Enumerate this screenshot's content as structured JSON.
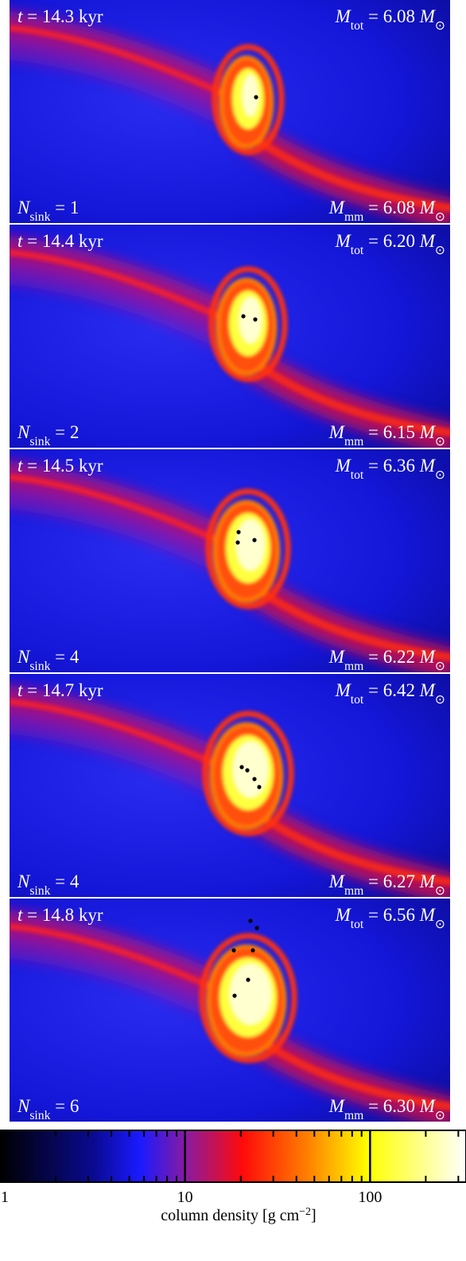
{
  "panels": [
    {
      "time": [
        {
          "text": "t"
        },
        {
          "text": " = 14.3 kyr"
        }
      ],
      "mtot": [
        {
          "text": "M"
        },
        {
          "sub": "tot"
        },
        {
          "text": " = 6.08 "
        },
        {
          "text": "M"
        },
        {
          "sub": "⊙"
        }
      ],
      "nsink": [
        {
          "text": "N"
        },
        {
          "sub": "sink"
        },
        {
          "text": " = 1"
        }
      ],
      "mmm": [
        {
          "text": "M"
        },
        {
          "sub": "mm"
        },
        {
          "text": " = 6.08 "
        },
        {
          "text": "M"
        },
        {
          "sub": "⊙"
        }
      ]
    },
    {
      "time": [
        {
          "text": "t"
        },
        {
          "text": " = 14.4 kyr"
        }
      ],
      "mtot": [
        {
          "text": "M"
        },
        {
          "sub": "tot"
        },
        {
          "text": " = 6.20 "
        },
        {
          "text": "M"
        },
        {
          "sub": "⊙"
        }
      ],
      "nsink": [
        {
          "text": "N"
        },
        {
          "sub": "sink"
        },
        {
          "text": " = 2"
        }
      ],
      "mmm": [
        {
          "text": "M"
        },
        {
          "sub": "mm"
        },
        {
          "text": " = 6.15 "
        },
        {
          "text": "M"
        },
        {
          "sub": "⊙"
        }
      ]
    },
    {
      "time": [
        {
          "text": "t"
        },
        {
          "text": " = 14.5 kyr"
        }
      ],
      "mtot": [
        {
          "text": "M"
        },
        {
          "sub": "tot"
        },
        {
          "text": " = 6.36 "
        },
        {
          "text": "M"
        },
        {
          "sub": "⊙"
        }
      ],
      "nsink": [
        {
          "text": "N"
        },
        {
          "sub": "sink"
        },
        {
          "text": " = 4"
        }
      ],
      "mmm": [
        {
          "text": "M"
        },
        {
          "sub": "mm"
        },
        {
          "text": " = 6.22 "
        },
        {
          "text": "M"
        },
        {
          "sub": "⊙"
        }
      ]
    },
    {
      "time": [
        {
          "text": "t"
        },
        {
          "text": " = 14.7 kyr"
        }
      ],
      "mtot": [
        {
          "text": "M"
        },
        {
          "sub": "tot"
        },
        {
          "text": " = 6.42 "
        },
        {
          "text": "M"
        },
        {
          "sub": "⊙"
        }
      ],
      "nsink": [
        {
          "text": "N"
        },
        {
          "sub": "sink"
        },
        {
          "text": " = 4"
        }
      ],
      "mmm": [
        {
          "text": "M"
        },
        {
          "sub": "mm"
        },
        {
          "text": " = 6.27 "
        },
        {
          "text": "M"
        },
        {
          "sub": "⊙"
        }
      ]
    },
    {
      "time": [
        {
          "text": "t"
        },
        {
          "text": " = 14.8 kyr"
        }
      ],
      "mtot": [
        {
          "text": "M"
        },
        {
          "sub": "tot"
        },
        {
          "text": " = 6.56 "
        },
        {
          "text": "M"
        },
        {
          "sub": "⊙"
        }
      ],
      "nsink": [
        {
          "text": "N"
        },
        {
          "sub": "sink"
        },
        {
          "text": " = 6"
        }
      ],
      "mmm": [
        {
          "text": "M"
        },
        {
          "sub": "mm"
        },
        {
          "text": " = 6.30 "
        },
        {
          "text": "M"
        },
        {
          "sub": "⊙"
        }
      ]
    }
  ],
  "colorbar": {
    "log": true,
    "range": [
      1,
      330
    ],
    "ticks": [
      1,
      10,
      100
    ],
    "label": [
      {
        "text": "column density [g cm"
      },
      {
        "sup": "−2"
      },
      {
        "text": "]"
      }
    ]
  }
}
